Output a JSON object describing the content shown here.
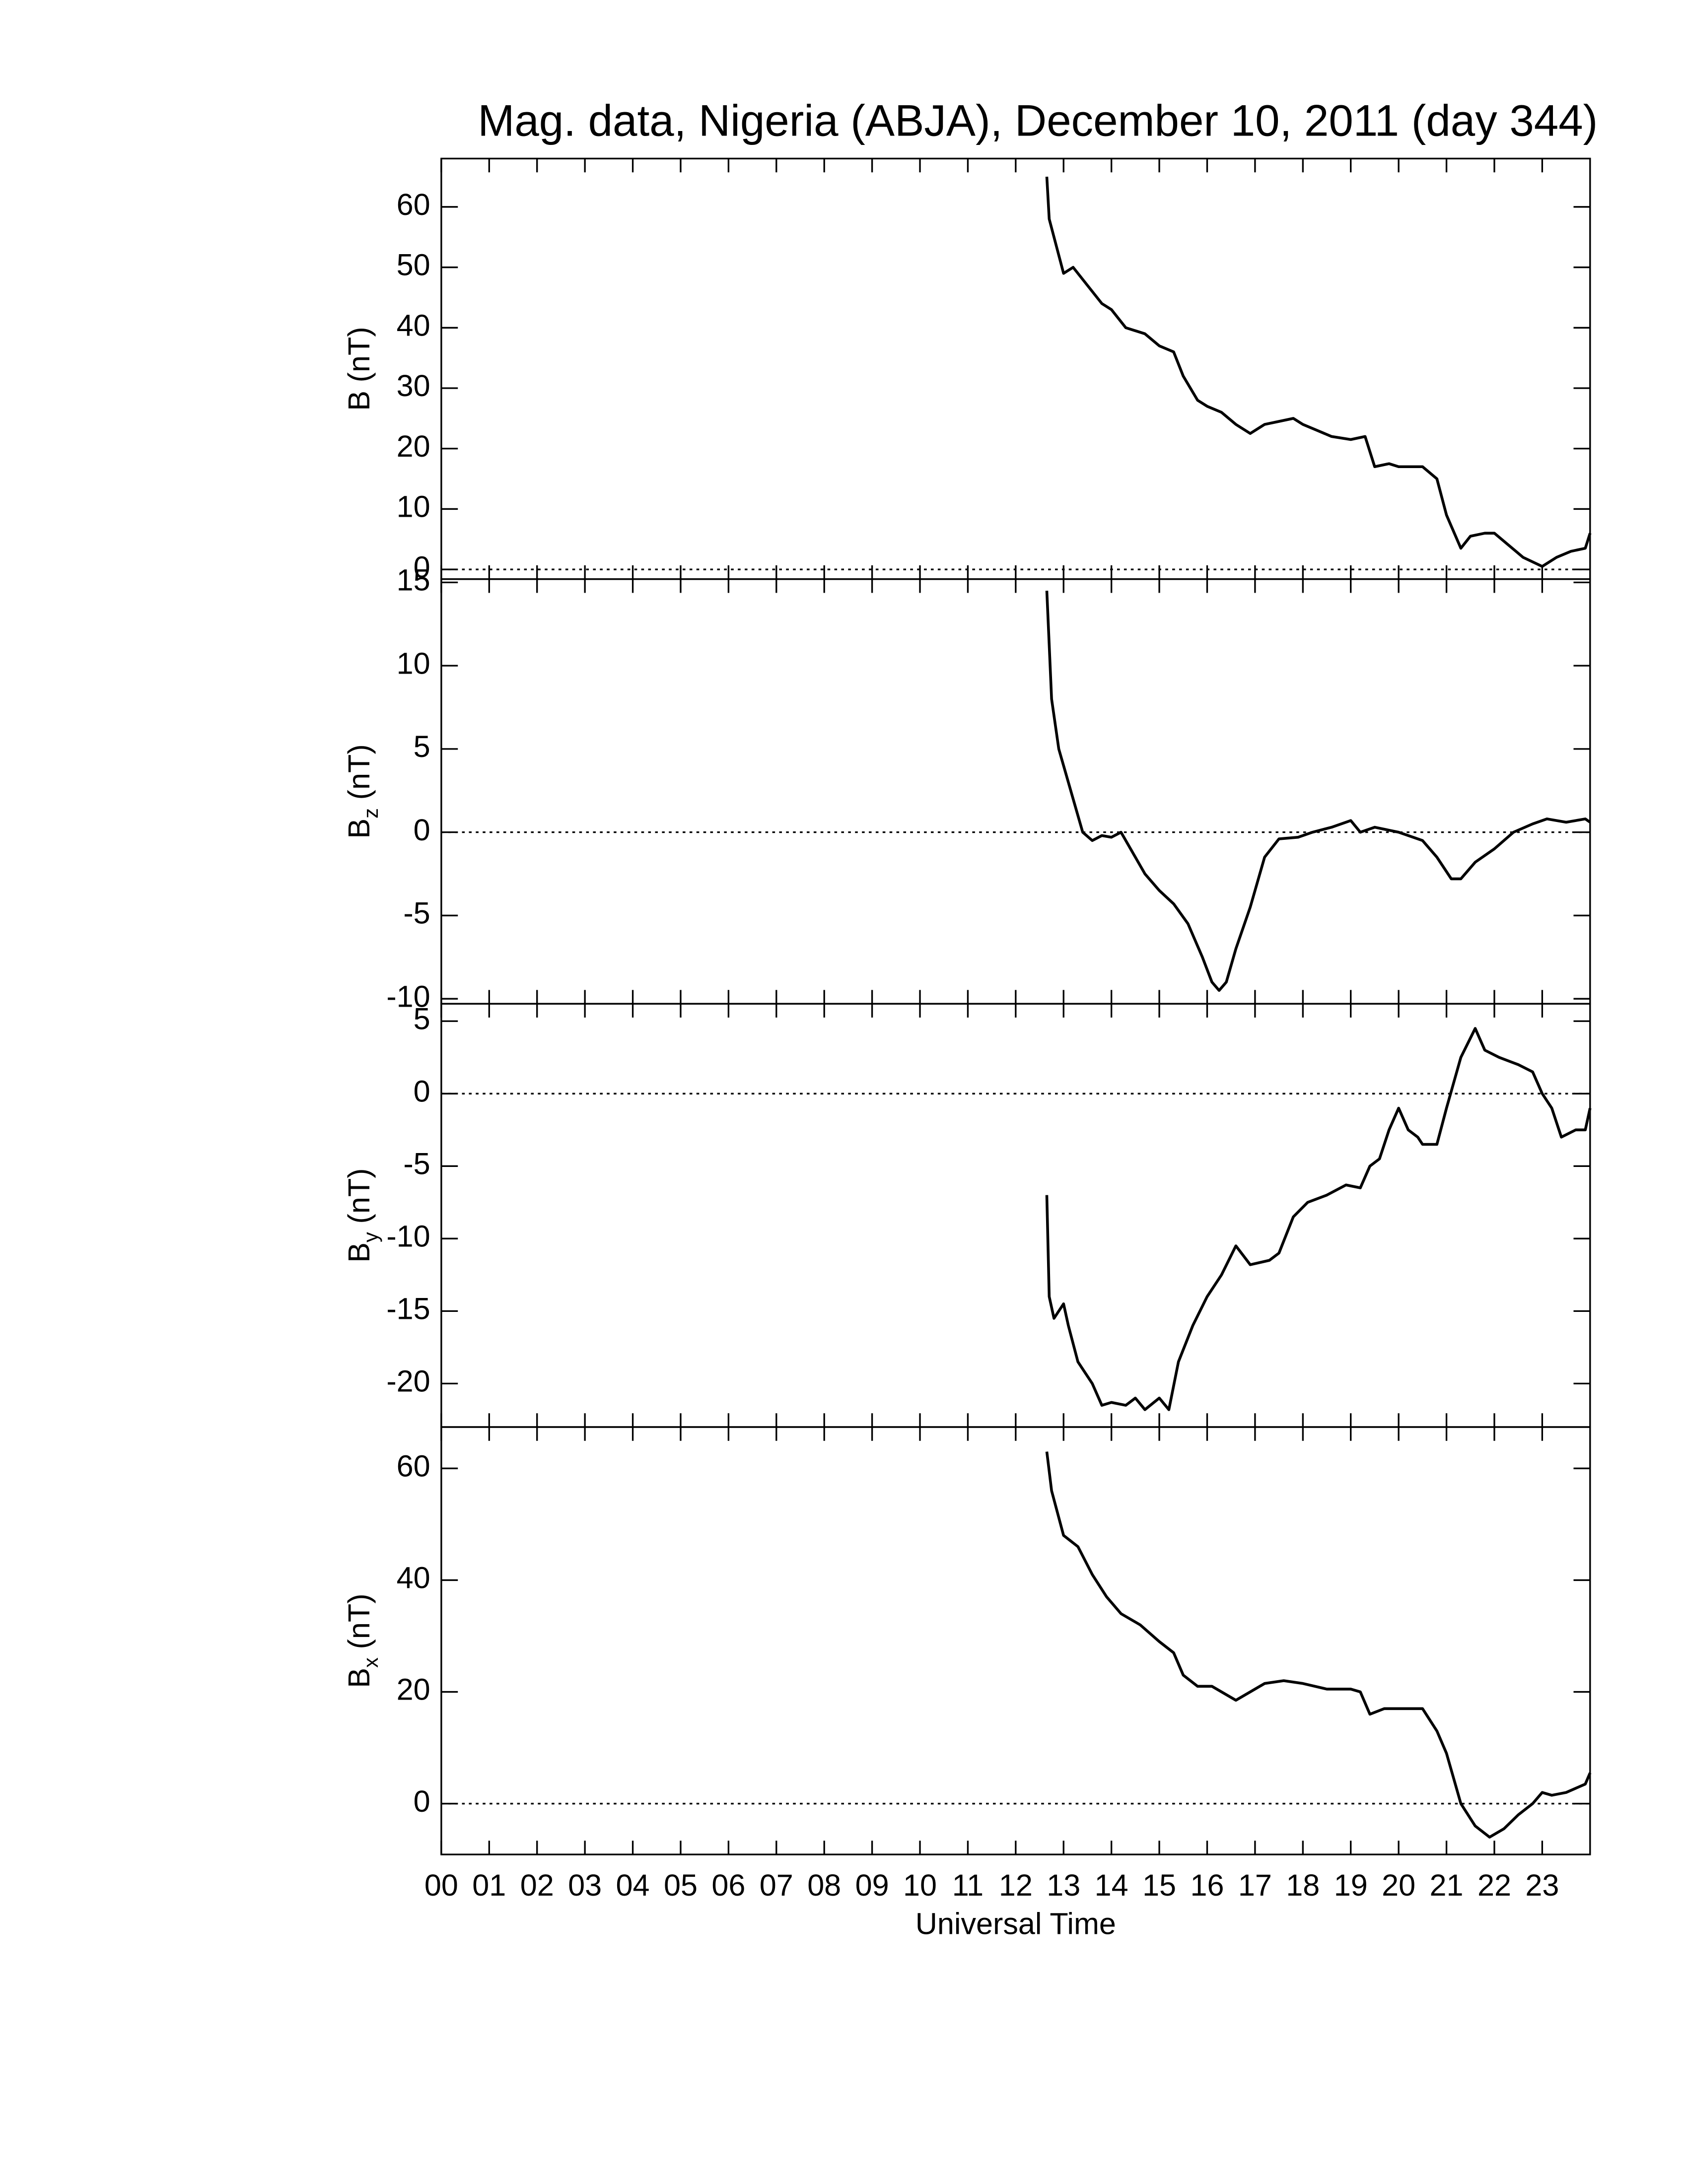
{
  "chart_data": [
    {
      "type": "line",
      "title": "Mag. data, Nigeria (ABJA), December 10, 2011 (day 344)",
      "ylabel": {
        "base": "B",
        "unit": "(nT)"
      },
      "x": [
        12.65,
        12.7,
        12.8,
        13.0,
        13.2,
        13.5,
        13.8,
        14.0,
        14.3,
        14.7,
        15.0,
        15.3,
        15.5,
        15.8,
        16.0,
        16.3,
        16.6,
        16.9,
        17.2,
        17.5,
        17.8,
        18.0,
        18.3,
        18.6,
        19.0,
        19.3,
        19.5,
        19.8,
        20.0,
        20.5,
        20.8,
        21.0,
        21.3,
        21.5,
        21.8,
        22.0,
        22.3,
        22.6,
        23.0,
        23.3,
        23.6,
        23.9,
        24.0
      ],
      "values": [
        65,
        58,
        55,
        49,
        50,
        47,
        44,
        43,
        40,
        39,
        37,
        36,
        32,
        28,
        27,
        26,
        24,
        22.5,
        24,
        24.5,
        25,
        24,
        23,
        22,
        21.5,
        22,
        17,
        17.5,
        17,
        17,
        15,
        9,
        3.5,
        5.5,
        6,
        6,
        4,
        2,
        0.5,
        2,
        3,
        3.5,
        6
      ],
      "color": "#000000",
      "xlim": [
        0,
        24
      ],
      "ylim": [
        -1.6,
        68
      ],
      "yticks": [
        0,
        10,
        20,
        30,
        40,
        50,
        60
      ],
      "zero_line": true
    },
    {
      "type": "line",
      "ylabel": {
        "base": "B",
        "sub": "z",
        "unit": "(nT)"
      },
      "x": [
        12.65,
        12.75,
        12.9,
        13.0,
        13.2,
        13.4,
        13.6,
        13.8,
        14.0,
        14.2,
        14.4,
        14.7,
        15.0,
        15.3,
        15.6,
        15.9,
        16.1,
        16.25,
        16.4,
        16.6,
        16.9,
        17.2,
        17.5,
        17.9,
        18.2,
        18.6,
        19.0,
        19.2,
        19.5,
        20.0,
        20.5,
        20.8,
        21.1,
        21.3,
        21.6,
        22.0,
        22.4,
        22.8,
        23.1,
        23.5,
        23.9,
        24.0
      ],
      "values": [
        14.5,
        8,
        5,
        4,
        2,
        0,
        -0.5,
        -0.2,
        -0.3,
        0,
        -1,
        -2.5,
        -3.5,
        -4.3,
        -5.5,
        -7.5,
        -9,
        -9.5,
        -9,
        -7,
        -4.5,
        -1.5,
        -0.4,
        -0.3,
        0,
        0.3,
        0.7,
        0,
        0.3,
        0,
        -0.5,
        -1.5,
        -2.8,
        -2.8,
        -1.8,
        -1,
        0,
        0.5,
        0.8,
        0.6,
        0.8,
        0.6
      ],
      "color": "#000000",
      "xlim": [
        0,
        24
      ],
      "ylim": [
        -10.3,
        15.2
      ],
      "yticks": [
        -10,
        -5,
        0,
        5,
        10,
        15
      ],
      "zero_line": true
    },
    {
      "type": "line",
      "ylabel": {
        "base": "B",
        "sub": "y",
        "unit": "(nT)"
      },
      "x": [
        12.65,
        12.7,
        12.8,
        13.0,
        13.1,
        13.3,
        13.6,
        13.8,
        14.0,
        14.3,
        14.5,
        14.7,
        15.0,
        15.2,
        15.4,
        15.7,
        16.0,
        16.3,
        16.6,
        16.9,
        17.3,
        17.5,
        17.8,
        18.1,
        18.5,
        18.9,
        19.2,
        19.4,
        19.6,
        19.8,
        20.0,
        20.2,
        20.4,
        20.5,
        20.8,
        21.0,
        21.3,
        21.6,
        21.8,
        22.1,
        22.5,
        22.8,
        23.0,
        23.2,
        23.4,
        23.7,
        23.9,
        24.0
      ],
      "values": [
        -7,
        -14,
        -15.5,
        -14.5,
        -16,
        -18.5,
        -20,
        -21.5,
        -21.3,
        -21.5,
        -21,
        -21.8,
        -21,
        -21.8,
        -18.5,
        -16,
        -14,
        -12.5,
        -10.5,
        -11.8,
        -11.5,
        -11,
        -8.5,
        -7.5,
        -7,
        -6.3,
        -6.5,
        -5,
        -4.5,
        -2.5,
        -1,
        -2.5,
        -3,
        -3.5,
        -3.5,
        -1,
        2.5,
        4.5,
        3,
        2.5,
        2,
        1.5,
        0,
        -1,
        -3,
        -2.5,
        -2.5,
        -1
      ],
      "color": "#000000",
      "xlim": [
        0,
        24
      ],
      "ylim": [
        -23,
        6.2
      ],
      "yticks": [
        -20,
        -15,
        -10,
        -5,
        0,
        5
      ],
      "zero_line": true
    },
    {
      "type": "line",
      "ylabel": {
        "base": "B",
        "sub": "x",
        "unit": "(nT)"
      },
      "xlabel": "Universal Time",
      "x": [
        12.65,
        12.75,
        13.0,
        13.3,
        13.6,
        13.9,
        14.2,
        14.6,
        15.0,
        15.3,
        15.5,
        15.8,
        16.1,
        16.4,
        16.6,
        16.9,
        17.2,
        17.6,
        18.0,
        18.5,
        19.0,
        19.2,
        19.4,
        19.7,
        20.0,
        20.5,
        20.8,
        21.0,
        21.3,
        21.6,
        21.9,
        22.2,
        22.5,
        22.8,
        23.0,
        23.2,
        23.5,
        23.9,
        24.0
      ],
      "values": [
        63,
        56,
        48,
        46,
        41,
        37,
        34,
        32,
        29,
        27,
        23,
        21,
        21,
        19.5,
        18.5,
        20,
        21.5,
        22,
        21.5,
        20.5,
        20.5,
        20,
        16,
        17,
        17,
        17,
        13,
        9,
        0,
        -4,
        -6,
        -4.5,
        -2,
        0,
        2,
        1.5,
        2,
        3.5,
        5.5
      ],
      "color": "#000000",
      "xlim": [
        0,
        24
      ],
      "ylim": [
        -9.1,
        67.4
      ],
      "yticks": [
        0,
        20,
        40,
        60
      ],
      "zero_line": true,
      "xticks": [
        {
          "value": 0,
          "label": "00"
        },
        {
          "value": 1,
          "label": "01"
        },
        {
          "value": 2,
          "label": "02"
        },
        {
          "value": 3,
          "label": "03"
        },
        {
          "value": 4,
          "label": "04"
        },
        {
          "value": 5,
          "label": "05"
        },
        {
          "value": 6,
          "label": "06"
        },
        {
          "value": 7,
          "label": "07"
        },
        {
          "value": 8,
          "label": "08"
        },
        {
          "value": 9,
          "label": "09"
        },
        {
          "value": 10,
          "label": "10"
        },
        {
          "value": 11,
          "label": "11"
        },
        {
          "value": 12,
          "label": "12"
        },
        {
          "value": 13,
          "label": "13"
        },
        {
          "value": 14,
          "label": "14"
        },
        {
          "value": 15,
          "label": "15"
        },
        {
          "value": 16,
          "label": "16"
        },
        {
          "value": 17,
          "label": "17"
        },
        {
          "value": 18,
          "label": "18"
        },
        {
          "value": 19,
          "label": "19"
        },
        {
          "value": 20,
          "label": "20"
        },
        {
          "value": 21,
          "label": "21"
        },
        {
          "value": 22,
          "label": "22"
        },
        {
          "value": 23,
          "label": "23"
        }
      ]
    }
  ]
}
